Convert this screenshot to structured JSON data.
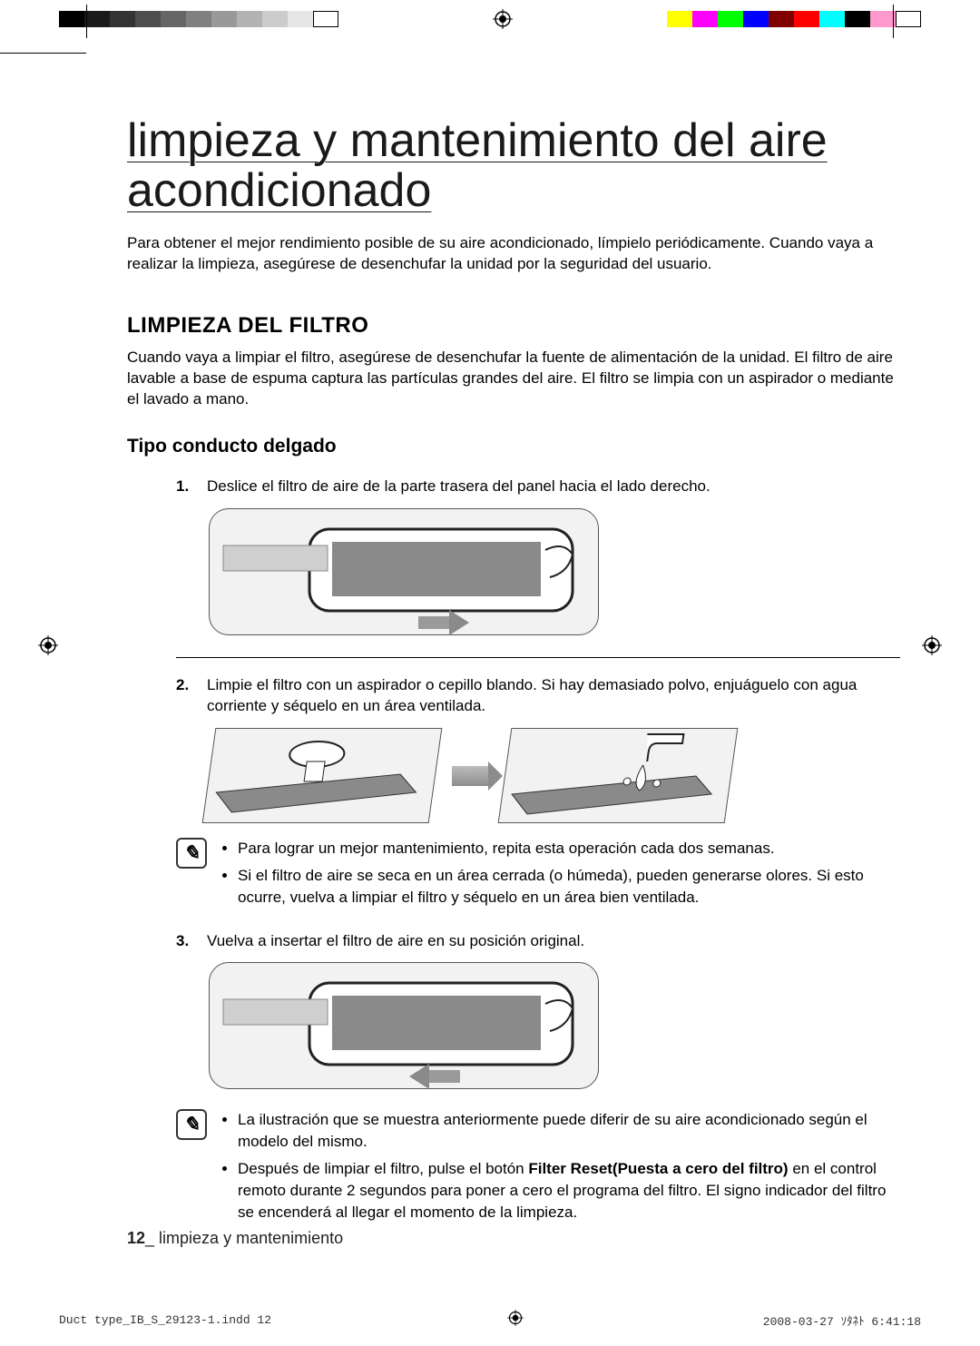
{
  "registration": {
    "gray_ramp_colors": [
      "#000000",
      "#1a1a1a",
      "#333333",
      "#4d4d4d",
      "#666666",
      "#808080",
      "#999999",
      "#b3b3b3",
      "#cccccc",
      "#e6e6e6",
      "#ffffff"
    ],
    "color_ramp_colors": [
      "#ffff00",
      "#ff00ff",
      "#00ff00",
      "#0000ff",
      "#800000",
      "#ff0000",
      "#00ffff",
      "#000000",
      "#ff99cc",
      "#ffffff"
    ]
  },
  "title": "limpieza y mantenimiento del aire acondicionado",
  "intro": "Para obtener el mejor rendimiento posible de su aire acondicionado, límpielo periódicamente. Cuando vaya a realizar la limpieza, asegúrese de desenchufar la unidad por la seguridad del usuario.",
  "section_heading": "LIMPIEZA DEL FILTRO",
  "section_body": "Cuando vaya a limpiar el filtro, asegúrese de desenchufar la fuente de alimentación de la unidad. El filtro de aire lavable a base de espuma captura las partículas grandes del aire. El filtro se limpia con un aspirador o mediante el lavado a mano.",
  "subsection_heading": "Tipo conducto delgado",
  "steps": {
    "s1_num": "1.",
    "s1_text": "Deslice el filtro de aire de la parte trasera del panel hacia el lado derecho.",
    "s2_num": "2.",
    "s2_text": "Limpie el filtro con un aspirador o cepillo blando. Si hay demasiado polvo, enjuáguelo con agua corriente y séquelo en un área ventilada.",
    "s3_num": "3.",
    "s3_text": "Vuelva a insertar el filtro de aire en su posición original."
  },
  "note1": {
    "b1": "Para lograr un mejor mantenimiento, repita esta operación cada dos semanas.",
    "b2": "Si el filtro de aire se seca en un área cerrada (o húmeda), pueden generarse olores. Si esto ocurre, vuelva a limpiar el filtro y séquelo en un área bien ventilada."
  },
  "note2": {
    "b1": "La ilustración que se muestra anteriormente puede diferir de su aire acondicionado según el modelo del mismo.",
    "b2_pre": "Después de limpiar el filtro, pulse el botón ",
    "b2_bold": "Filter Reset(Puesta a cero del filtro)",
    "b2_post": " en el control remoto durante 2 segundos para poner a cero el programa del filtro. El signo indicador del filtro se encenderá al llegar el momento de la limpieza."
  },
  "footer_page_num": "12",
  "footer_text": "_ limpieza y mantenimiento",
  "print_footer_left": "Duct type_IB_S_29123-1.indd   12",
  "print_footer_right": "2008-03-27   ｿﾀﾈﾄ 6:41:18"
}
